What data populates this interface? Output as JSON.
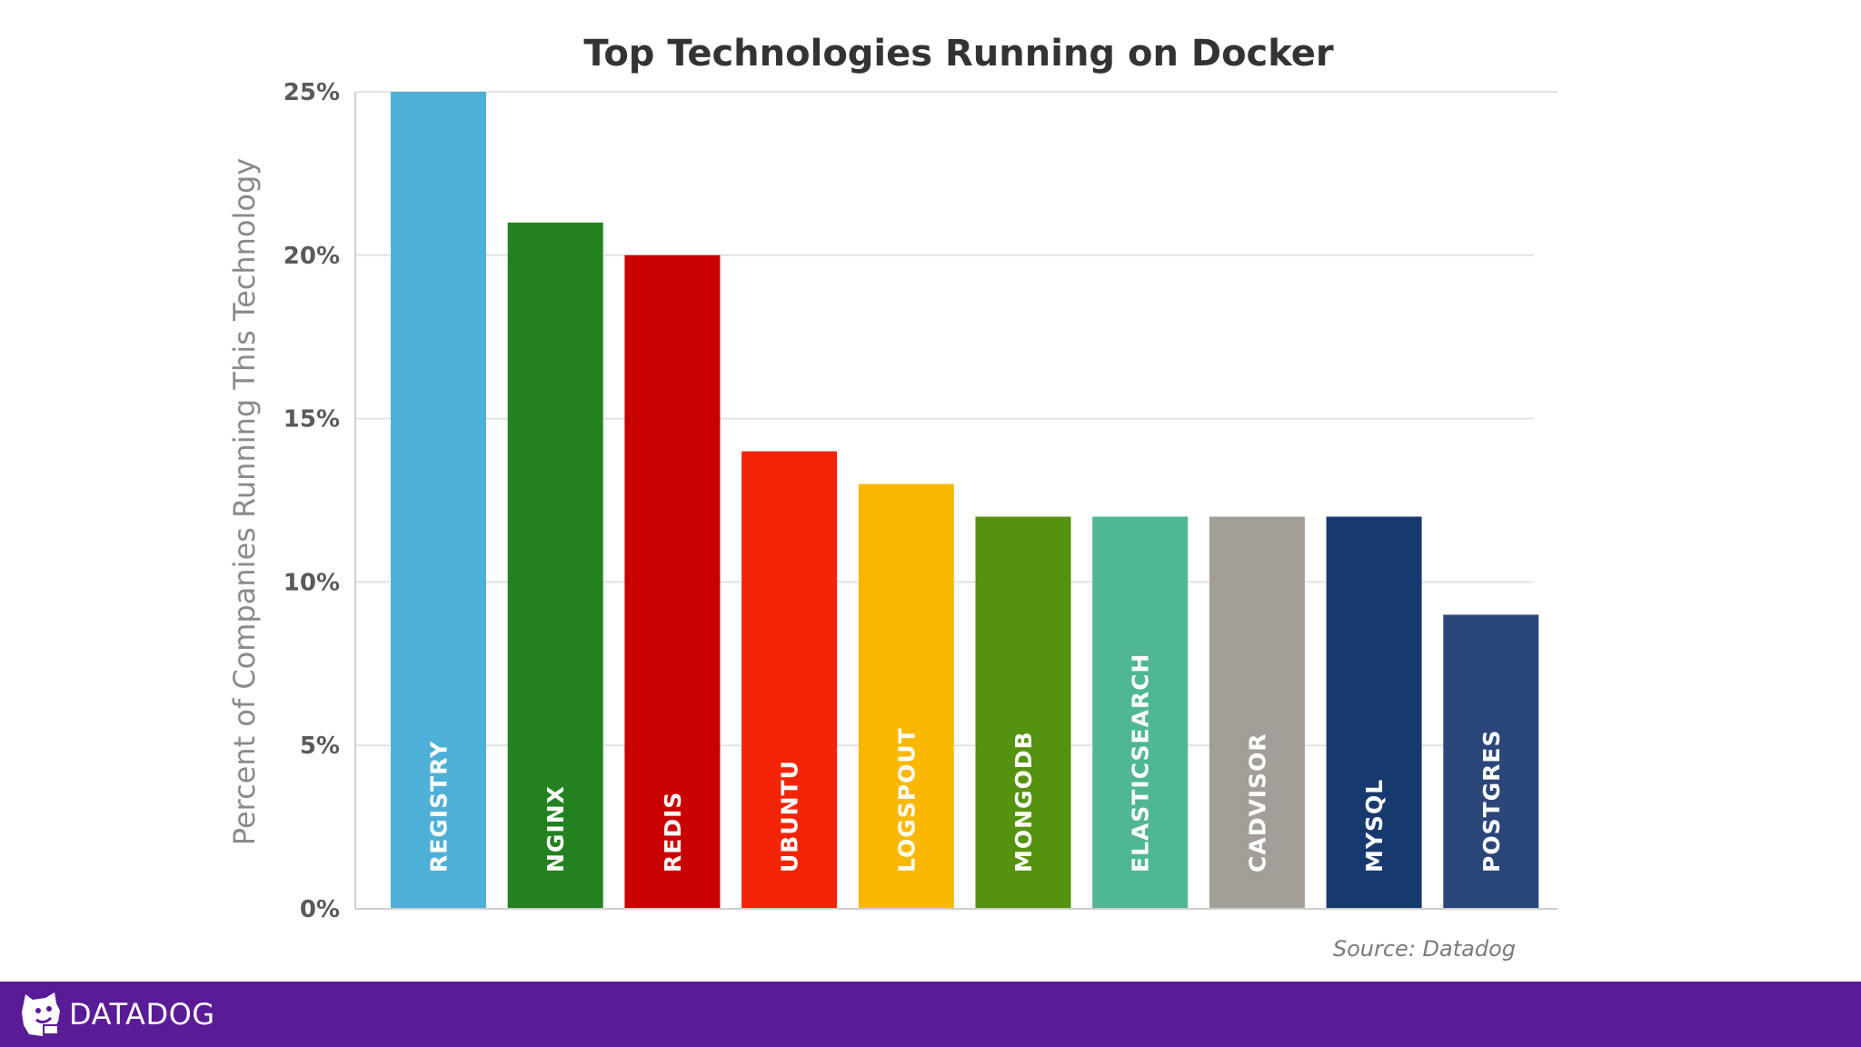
{
  "chart_data": {
    "type": "bar",
    "title": "Top Technologies Running on Docker",
    "ylabel": "Percent of Companies Running This Technology",
    "xlabel": "",
    "ylim": [
      0,
      25
    ],
    "yticks": [
      "0%",
      "5%",
      "10%",
      "15%",
      "20%",
      "25%"
    ],
    "grid": true,
    "categories": [
      "REGISTRY",
      "NGINX",
      "REDIS",
      "UBUNTU",
      "LOGSPOUT",
      "MONGODB",
      "ELASTICSEARCH",
      "CADVISOR",
      "MYSQL",
      "POSTGRES"
    ],
    "values": [
      25,
      21,
      20,
      14,
      13,
      12,
      12,
      12,
      12,
      9
    ],
    "colors": [
      "#4eb0d6",
      "#23821f",
      "#c90000",
      "#f42406",
      "#fab802",
      "#55920f",
      "#4fb792",
      "#a49e99",
      "#173a6e",
      "#2b477a"
    ],
    "source": "Source: Datadog"
  },
  "footer": {
    "brand": "DATADOG",
    "icon": "datadog-dog-icon",
    "background": "#5a1b97"
  }
}
